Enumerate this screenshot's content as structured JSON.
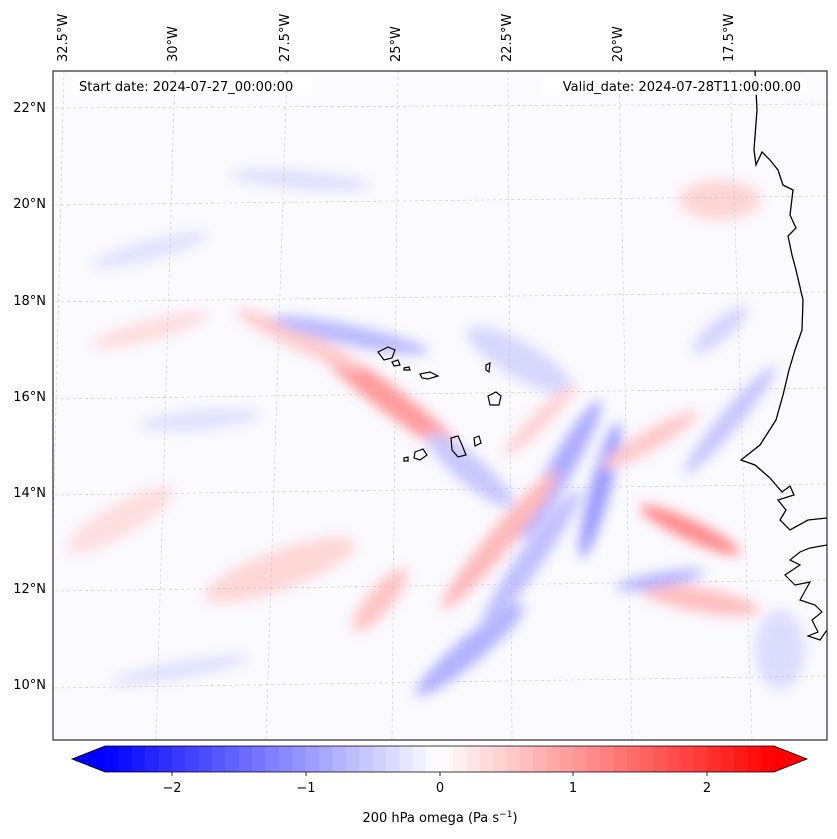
{
  "map": {
    "start_date": "Start date: 2024-07-27_00:00:00",
    "valid_date": "Valid_date: 2024-07-28T11:00:00.00",
    "lon_labels": [
      "32.5°W",
      "30°W",
      "27.5°W",
      "25°W",
      "22.5°W",
      "20°W",
      "17.5°W"
    ],
    "lat_labels": [
      "22°N",
      "20°N",
      "18°N",
      "16°N",
      "14°N",
      "12°N",
      "10°N"
    ],
    "coastline_color": "#000000",
    "gridlines": true
  },
  "colorbar": {
    "label_main": "200 hPa omega (Pa s",
    "label_exp": "−1",
    "label_close": ")",
    "ticks": [
      "−2",
      "−1",
      "0",
      "1",
      "2"
    ],
    "range": [
      -2.5,
      2.5
    ],
    "colormap": "bwr",
    "min_color": "#0000ff",
    "mid_color": "#ffffff",
    "max_color": "#ff0000",
    "extend": "both"
  }
}
